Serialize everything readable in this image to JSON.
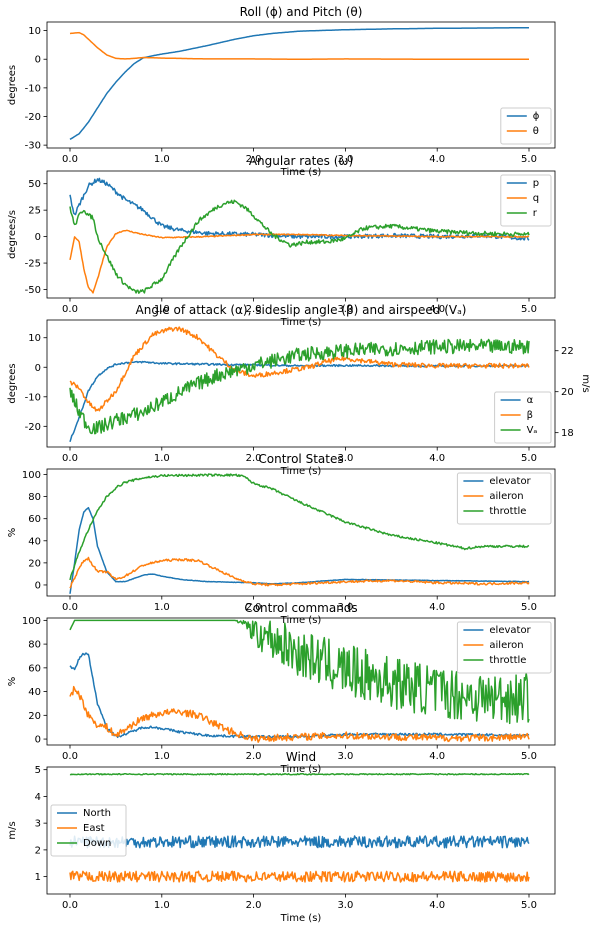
{
  "figure": {
    "xlabel": "Time (s)",
    "xticks": [
      "0.0",
      "1.0",
      "2.0",
      "3.0",
      "4.0",
      "5.0"
    ]
  },
  "colors": {
    "blue": "#1f77b4",
    "orange": "#ff7f0e",
    "green": "#2ca02c"
  },
  "chart_data": [
    {
      "type": "line",
      "title": "Roll (ϕ) and Pitch (θ)",
      "xlabel": "Time (s)",
      "ylabel": "degrees",
      "xlim": [
        0,
        5
      ],
      "ylim": [
        -31,
        13
      ],
      "yticks": [
        -30,
        -20,
        -10,
        0,
        10
      ],
      "legend": "bottom-right",
      "series": [
        {
          "name": "ϕ",
          "color": "#1f77b4",
          "x": [
            0,
            0.1,
            0.2,
            0.3,
            0.4,
            0.5,
            0.6,
            0.7,
            0.8,
            0.9,
            1.0,
            1.2,
            1.5,
            1.8,
            2.0,
            2.2,
            2.5,
            3.0,
            3.5,
            4.0,
            4.5,
            5.0
          ],
          "y": [
            -28,
            -26,
            -22,
            -17,
            -12,
            -8,
            -4.5,
            -1.5,
            0.5,
            1.2,
            1.8,
            2.8,
            4.8,
            7.0,
            8.2,
            9.0,
            9.8,
            10.3,
            10.6,
            10.8,
            10.9,
            11.0
          ]
        },
        {
          "name": "θ",
          "color": "#ff7f0e",
          "x": [
            0,
            0.1,
            0.15,
            0.2,
            0.3,
            0.4,
            0.5,
            0.6,
            0.7,
            0.8,
            1.0,
            1.5,
            2.0,
            2.5,
            3.0,
            4.0,
            5.0
          ],
          "y": [
            9,
            9.3,
            8.5,
            7,
            4,
            1.5,
            0.3,
            0.1,
            0.3,
            0.6,
            0.4,
            0.1,
            0.1,
            0,
            0.1,
            0,
            0
          ]
        }
      ]
    },
    {
      "type": "line",
      "title": "Angular rates (ω)",
      "xlabel": "Time (s)",
      "ylabel": "degrees/s",
      "xlim": [
        0,
        5
      ],
      "ylim": [
        -58,
        62
      ],
      "yticks": [
        -50,
        -25,
        0,
        25,
        50
      ],
      "legend": "top-right",
      "series": [
        {
          "name": "p",
          "color": "#1f77b4",
          "noise": 2,
          "x": [
            0,
            0.05,
            0.1,
            0.2,
            0.3,
            0.4,
            0.6,
            0.8,
            1.0,
            1.2,
            1.5,
            2.0,
            2.5,
            3.0,
            3.5,
            4.0,
            4.5,
            5.0
          ],
          "y": [
            38,
            20,
            30,
            48,
            54,
            50,
            35,
            25,
            10,
            6,
            3,
            2,
            0,
            0,
            1,
            0,
            1,
            -2
          ]
        },
        {
          "name": "q",
          "color": "#ff7f0e",
          "noise": 0.5,
          "x": [
            0,
            0.05,
            0.1,
            0.15,
            0.2,
            0.25,
            0.3,
            0.4,
            0.5,
            0.6,
            0.8,
            1.0,
            1.5,
            2.0,
            2.5,
            3.0,
            4.0,
            5.0
          ],
          "y": [
            -22,
            0,
            -5,
            -30,
            -48,
            -53,
            -40,
            -10,
            3,
            6,
            2,
            -1,
            0,
            2,
            2,
            1,
            0,
            0
          ]
        },
        {
          "name": "r",
          "color": "#2ca02c",
          "noise": 2,
          "x": [
            0,
            0.05,
            0.1,
            0.15,
            0.2,
            0.25,
            0.3,
            0.4,
            0.5,
            0.6,
            0.7,
            0.8,
            1.0,
            1.2,
            1.4,
            1.6,
            1.7,
            1.8,
            1.9,
            2.0,
            2.2,
            2.4,
            2.6,
            2.8,
            3.0,
            3.2,
            3.5,
            4.0,
            4.5,
            5.0
          ],
          "y": [
            28,
            10,
            20,
            26,
            20,
            18,
            0,
            -18,
            -35,
            -45,
            -52,
            -52,
            -40,
            -10,
            15,
            28,
            32,
            33,
            28,
            20,
            2,
            -8,
            -5,
            -5,
            -2,
            8,
            10,
            5,
            3,
            2
          ]
        }
      ]
    },
    {
      "type": "line",
      "title": "Angle of attack (α), sideslip angle (β) and airspeed (Vₐ)",
      "xlabel": "Time (s)",
      "ylabel": "degrees",
      "y2label": "m/s",
      "xlim": [
        0,
        5
      ],
      "ylim": [
        -27,
        16
      ],
      "y2lim": [
        17.3,
        23.5
      ],
      "yticks": [
        -20,
        -10,
        0,
        10
      ],
      "y2ticks": [
        18,
        20,
        22
      ],
      "legend": "bottom-right",
      "series": [
        {
          "name": "α",
          "color": "#1f77b4",
          "axis": "left",
          "noise": 0.3,
          "x": [
            0,
            0.1,
            0.2,
            0.3,
            0.4,
            0.5,
            0.6,
            0.8,
            1.0,
            1.5,
            2.0,
            2.5,
            3.0,
            4.0,
            5.0
          ],
          "y": [
            -25,
            -17,
            -8,
            -3,
            -0.5,
            1,
            1.5,
            1.8,
            1.3,
            1,
            0.8,
            0.5,
            0.6,
            0.4,
            0.5
          ]
        },
        {
          "name": "β",
          "color": "#ff7f0e",
          "axis": "left",
          "noise": 0.8,
          "x": [
            0,
            0.1,
            0.2,
            0.3,
            0.5,
            0.7,
            0.9,
            1.1,
            1.2,
            1.4,
            1.6,
            1.8,
            2.0,
            2.2,
            2.4,
            2.6,
            2.8,
            3.0,
            3.5,
            4.0,
            4.5,
            5.0
          ],
          "y": [
            -5,
            -7,
            -12,
            -15,
            -8,
            4,
            11,
            13,
            13,
            10,
            4,
            -1,
            -3,
            -2,
            -1,
            0,
            2,
            3,
            1,
            0.5,
            0.5,
            0.5
          ]
        },
        {
          "name": "Vₐ",
          "color": "#2ca02c",
          "axis": "right",
          "noise": 0.35,
          "x": [
            0,
            0.1,
            0.2,
            0.3,
            0.5,
            0.8,
            1.0,
            1.3,
            1.6,
            2.0,
            2.5,
            3.0,
            3.5,
            4.0,
            4.5,
            5.0
          ],
          "y": [
            20.0,
            19.0,
            18.3,
            18.2,
            18.6,
            19.0,
            19.5,
            20.2,
            20.8,
            21.3,
            21.8,
            22.0,
            22.1,
            22.2,
            22.2,
            22.2
          ]
        }
      ]
    },
    {
      "type": "line",
      "title": "Control States",
      "xlabel": "Time (s)",
      "ylabel": "%",
      "xlim": [
        0,
        5
      ],
      "ylim": [
        -10,
        105
      ],
      "yticks": [
        0,
        20,
        40,
        60,
        80,
        100
      ],
      "legend": "top-right",
      "series": [
        {
          "name": "elevator",
          "color": "#1f77b4",
          "noise": 0.2,
          "x": [
            0,
            0.05,
            0.1,
            0.15,
            0.2,
            0.25,
            0.3,
            0.4,
            0.5,
            0.6,
            0.8,
            0.9,
            1.0,
            1.2,
            1.5,
            2.0,
            2.2,
            2.5,
            3.0,
            4.0,
            5.0
          ],
          "y": [
            -8,
            20,
            50,
            66,
            70,
            60,
            35,
            12,
            3,
            3,
            9,
            10,
            8,
            5,
            3,
            2,
            1,
            2,
            5,
            4,
            3
          ]
        },
        {
          "name": "aileron",
          "color": "#ff7f0e",
          "noise": 1,
          "x": [
            0,
            0.1,
            0.15,
            0.2,
            0.3,
            0.4,
            0.5,
            0.6,
            0.8,
            1.0,
            1.2,
            1.4,
            1.6,
            1.8,
            2.0,
            2.2,
            2.5,
            3.0,
            3.5,
            4.0,
            4.5,
            5.0
          ],
          "y": [
            -2,
            15,
            22,
            24,
            12,
            12,
            5,
            8,
            18,
            22,
            23,
            22,
            14,
            6,
            1,
            0,
            1,
            3,
            4,
            2,
            1,
            2
          ]
        },
        {
          "name": "throttle",
          "color": "#2ca02c",
          "noise": 1,
          "x": [
            0,
            0.1,
            0.2,
            0.3,
            0.4,
            0.5,
            0.6,
            0.8,
            1.0,
            1.5,
            1.8,
            1.9,
            2.0,
            2.2,
            2.5,
            3.0,
            3.5,
            4.0,
            4.3,
            4.5,
            5.0
          ],
          "y": [
            5,
            30,
            50,
            67,
            80,
            88,
            93,
            97,
            99,
            99.5,
            99.5,
            98,
            92,
            87,
            75,
            57,
            45,
            38,
            33,
            35,
            35
          ]
        }
      ]
    },
    {
      "type": "line",
      "title": "Control commands",
      "xlabel": "Time (s)",
      "ylabel": "%",
      "xlim": [
        0,
        5
      ],
      "ylim": [
        -5,
        102
      ],
      "yticks": [
        0,
        20,
        40,
        60,
        80,
        100
      ],
      "legend": "top-right",
      "series": [
        {
          "name": "elevator",
          "color": "#1f77b4",
          "noise": 1,
          "x": [
            0,
            0.05,
            0.1,
            0.15,
            0.2,
            0.25,
            0.3,
            0.4,
            0.5,
            0.6,
            0.8,
            0.9,
            1.0,
            1.2,
            1.5,
            2.0,
            2.5,
            3.0,
            4.0,
            5.0
          ],
          "y": [
            62,
            58,
            68,
            72,
            72,
            50,
            30,
            10,
            2,
            4,
            10,
            10,
            9,
            6,
            3,
            2,
            2,
            4,
            4,
            3
          ]
        },
        {
          "name": "aileron",
          "color": "#ff7f0e",
          "noise": 3,
          "x": [
            0,
            0.05,
            0.1,
            0.2,
            0.3,
            0.4,
            0.5,
            0.6,
            0.8,
            1.0,
            1.2,
            1.4,
            1.6,
            1.8,
            2.0,
            2.2,
            2.5,
            3.0,
            3.5,
            4.0,
            4.5,
            5.0
          ],
          "y": [
            38,
            42,
            38,
            20,
            12,
            10,
            3,
            8,
            18,
            22,
            23,
            20,
            12,
            5,
            0,
            1,
            2,
            3,
            2,
            1,
            1,
            2
          ]
        },
        {
          "name": "throttle",
          "color": "#2ca02c",
          "noise": 0,
          "x": [
            0,
            0.05,
            0.1,
            0.5,
            1.0,
            1.5,
            1.8,
            1.9,
            2.0,
            2.2,
            2.5,
            3.0,
            3.5,
            4.0,
            4.5,
            5.0
          ],
          "y": [
            92,
            100,
            100,
            100,
            100,
            100,
            100,
            98,
            92,
            85,
            72,
            58,
            48,
            40,
            35,
            35
          ],
          "band": [
            0,
            0,
            0,
            0,
            0,
            0,
            0,
            3,
            14,
            18,
            20,
            22,
            22,
            22,
            22,
            22
          ]
        }
      ]
    },
    {
      "type": "line",
      "title": "Wind",
      "xlabel": "Time (s)",
      "ylabel": "m/s",
      "xlim": [
        0,
        5
      ],
      "ylim": [
        0.35,
        5.1
      ],
      "yticks": [
        1,
        2,
        3,
        4,
        5
      ],
      "legend": "center-left",
      "series": [
        {
          "name": "North",
          "color": "#1f77b4",
          "noise": 0.22,
          "x": [
            0,
            5
          ],
          "y": [
            2.3,
            2.3
          ]
        },
        {
          "name": "East",
          "color": "#ff7f0e",
          "noise": 0.2,
          "x": [
            0,
            5
          ],
          "y": [
            1.0,
            1.0
          ]
        },
        {
          "name": "Down",
          "color": "#2ca02c",
          "noise": 0.02,
          "x": [
            0,
            5
          ],
          "y": [
            4.83,
            4.83
          ]
        }
      ]
    }
  ]
}
